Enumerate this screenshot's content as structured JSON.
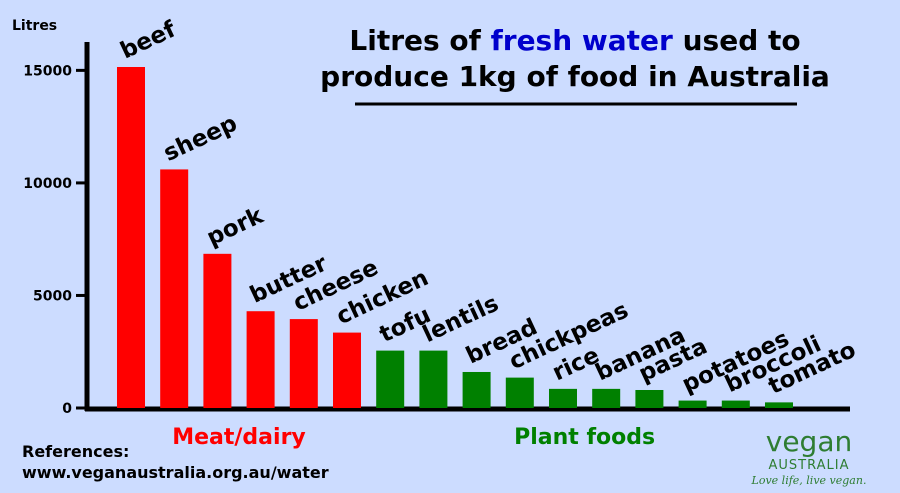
{
  "chart_data": {
    "type": "bar",
    "title_parts": [
      "Litres of ",
      "fresh water",
      " used to"
    ],
    "title_line2": "produce 1kg of food in Australia",
    "ylabel": "Litres",
    "ylim": [
      0,
      16500
    ],
    "yticks": [
      0,
      5000,
      10000,
      15000
    ],
    "categories": [
      "beef",
      "sheep",
      "pork",
      "butter",
      "cheese",
      "chicken",
      "tofu",
      "lentils",
      "bread",
      "chickpeas",
      "rice",
      "banana",
      "pasta",
      "potatoes",
      "broccoli",
      "tomato"
    ],
    "values": [
      15150,
      10600,
      6850,
      4300,
      3950,
      3350,
      2550,
      2550,
      1600,
      1350,
      850,
      850,
      800,
      330,
      330,
      250
    ],
    "groups": [
      {
        "name": "Meat/dairy",
        "color": "#ff0000",
        "start": 0,
        "end": 5
      },
      {
        "name": "Plant foods",
        "color": "#008000",
        "start": 6,
        "end": 15
      }
    ],
    "grid": false
  },
  "colors": {
    "background": "#ccdcff",
    "title_highlight": "#0000cc",
    "meat": "#ff0000",
    "plant": "#008000",
    "logo": "#2e7d32"
  },
  "references": {
    "heading": "References:",
    "url": "www.veganaustralia.org.au/water"
  },
  "logo": {
    "word": "vegan",
    "sub": "AUSTRALIA",
    "tagline": "Love life, live vegan."
  }
}
